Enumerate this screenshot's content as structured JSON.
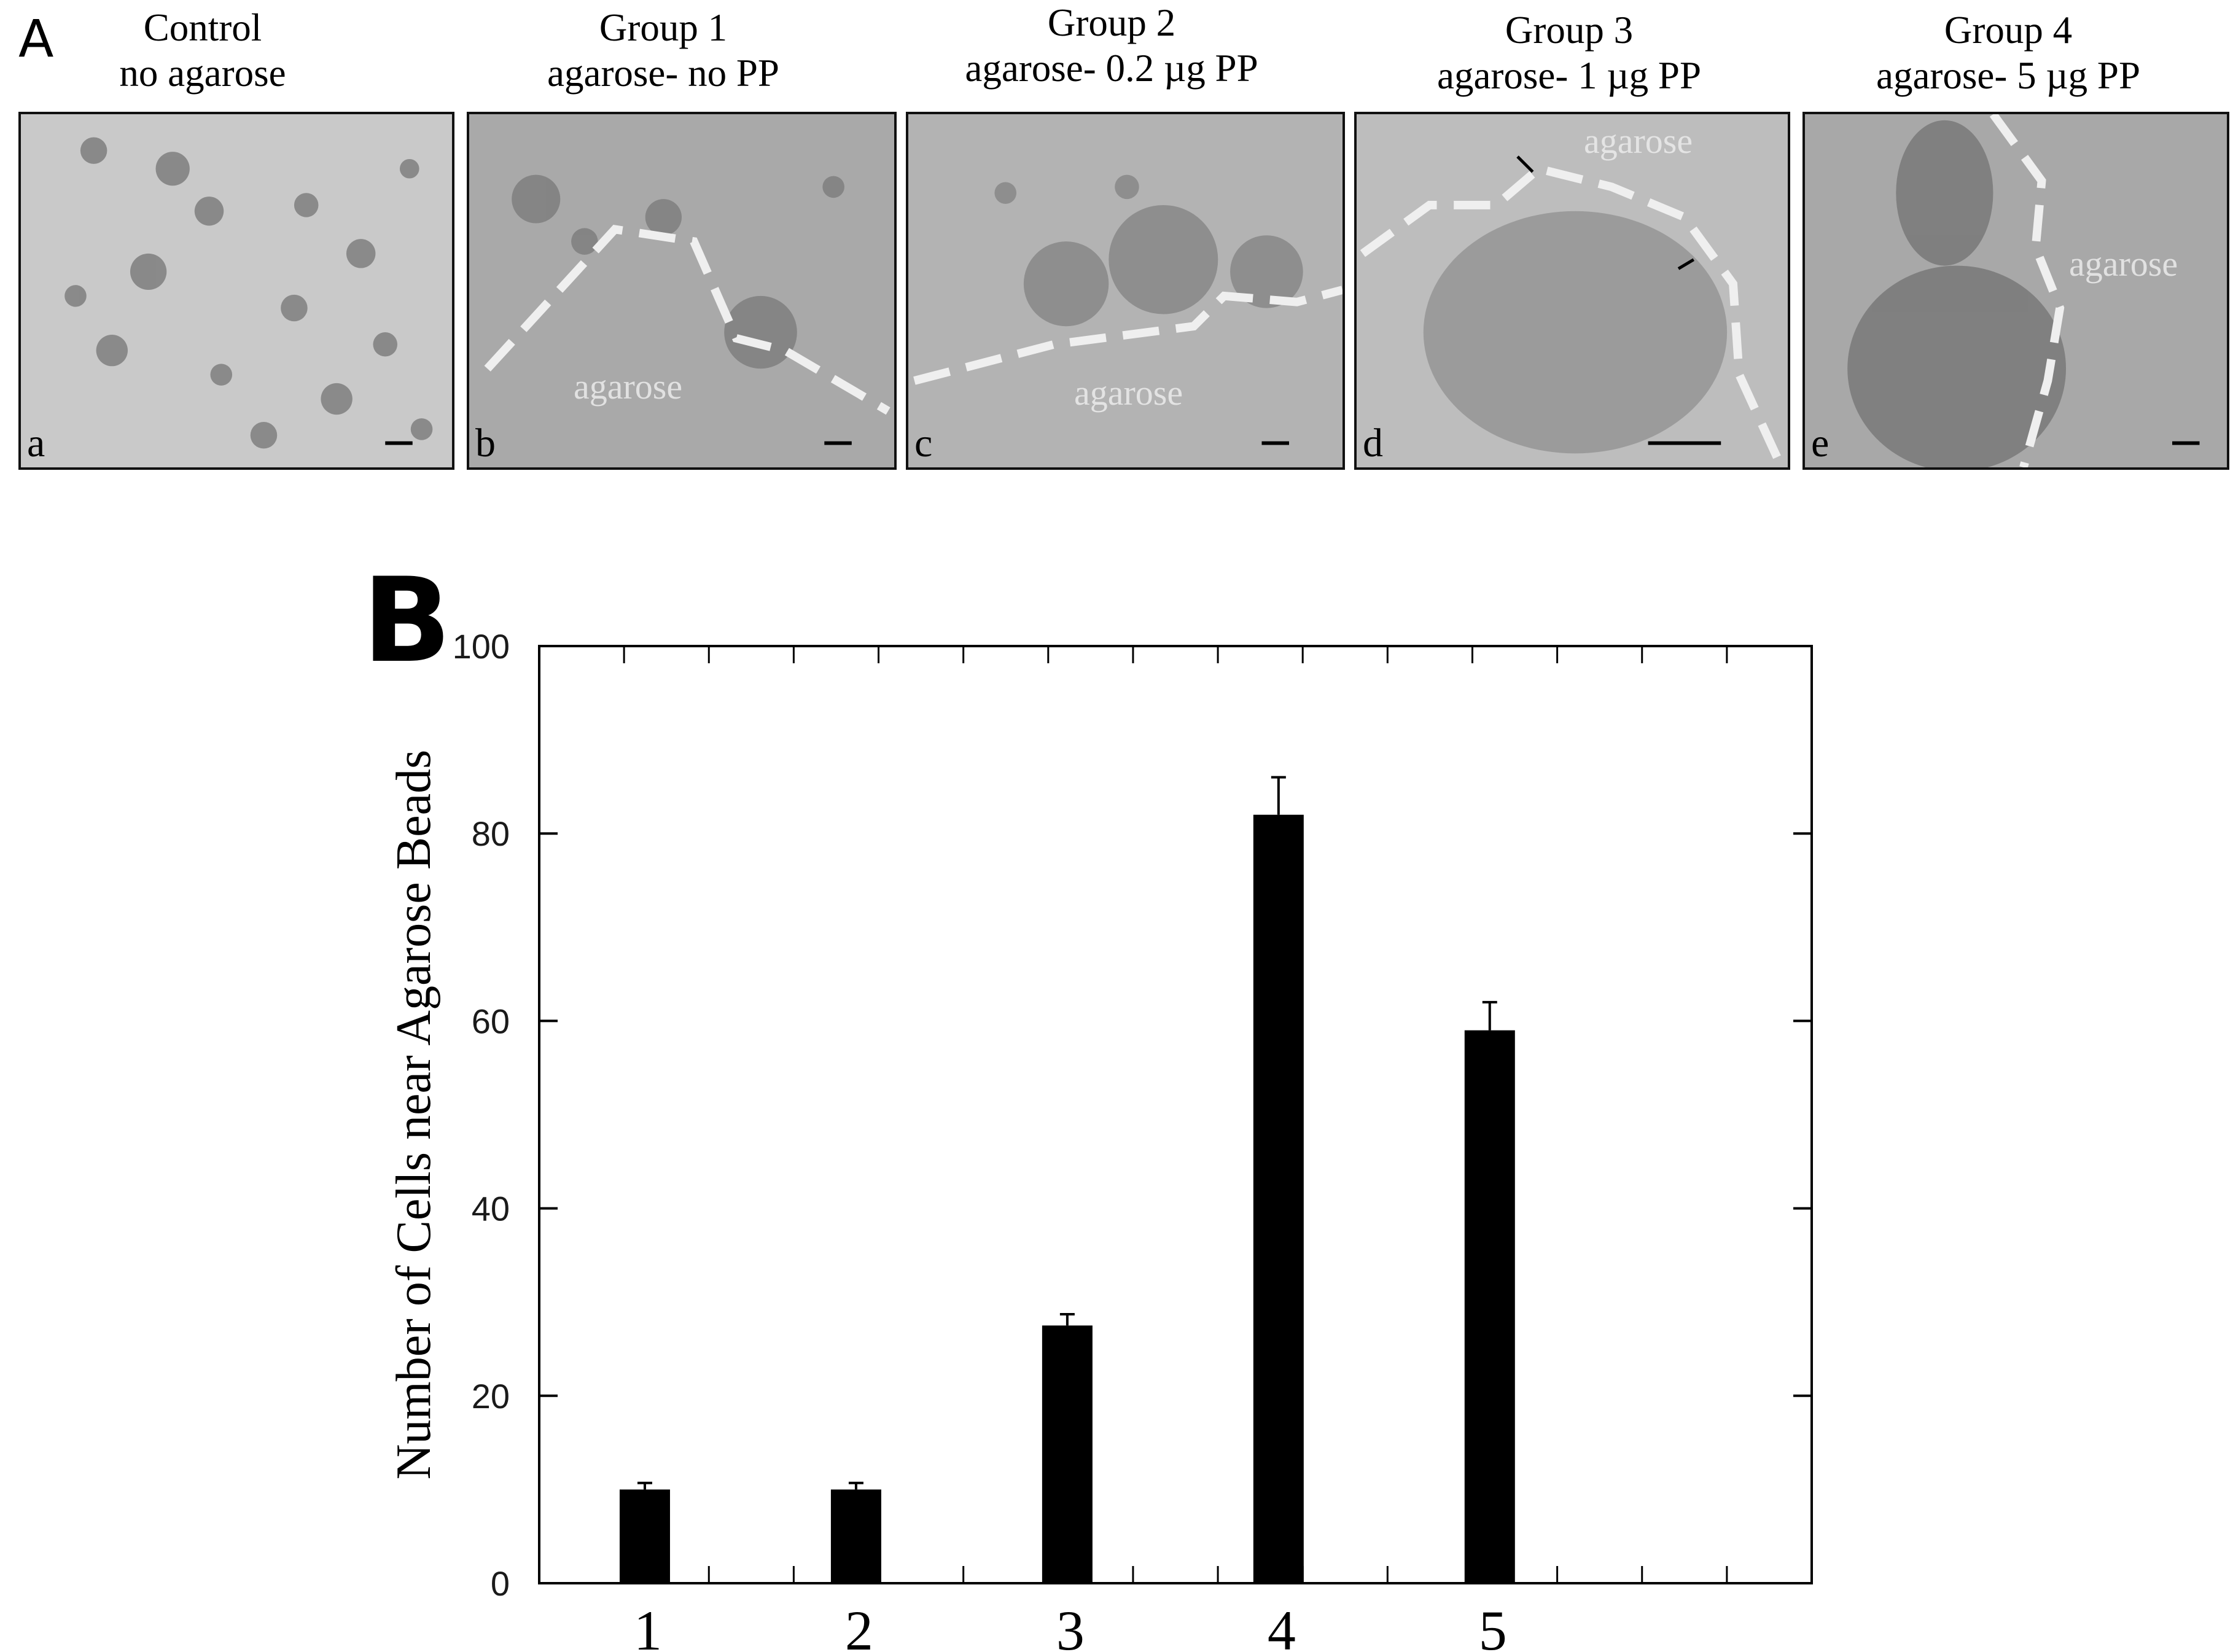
{
  "figure": {
    "panel_a_letter": "A",
    "panel_b_letter": "B",
    "panels": [
      {
        "title": "Control",
        "subtitle": "no agarose",
        "letter": "a",
        "agarose_labels": []
      },
      {
        "title": "Group 1",
        "subtitle": "agarose- no PP",
        "letter": "b",
        "agarose_labels": [
          "agarose"
        ]
      },
      {
        "title": "Group 2",
        "subtitle": "agarose- 0.2 µg PP",
        "letter": "c",
        "agarose_labels": [
          "agarose"
        ]
      },
      {
        "title": "Group 3",
        "subtitle": "agarose- 1 µg PP",
        "letter": "d",
        "agarose_labels": [
          "agarose"
        ]
      },
      {
        "title": "Group 4",
        "subtitle": "agarose- 5 µg PP",
        "letter": "e",
        "agarose_labels": [
          "agarose"
        ]
      }
    ]
  },
  "chart_data": {
    "type": "bar",
    "categories": [
      "1",
      "2",
      "3",
      "4",
      "5"
    ],
    "values": [
      10,
      10,
      27.5,
      82,
      59
    ],
    "errors": [
      0.7,
      0.7,
      1.2,
      4,
      3
    ],
    "title": "",
    "xlabel": "",
    "ylabel": "Number of Cells near Agarose Beads",
    "ylim": [
      0,
      100
    ],
    "yticks": [
      0,
      20,
      40,
      60,
      80,
      100
    ],
    "grid": false,
    "bar_color": "#000000",
    "tick_label_color": "#1a1a1a"
  }
}
